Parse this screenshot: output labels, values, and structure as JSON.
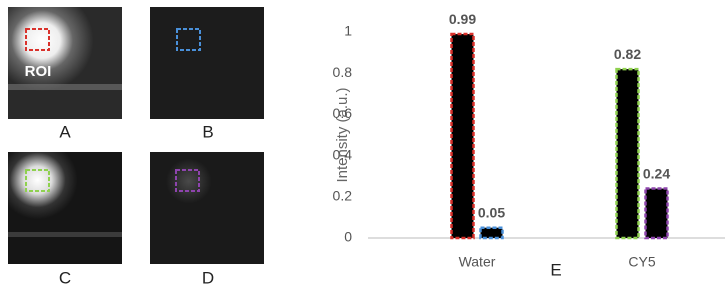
{
  "panels": [
    {
      "label": "A"
    },
    {
      "label": "B"
    },
    {
      "label": "C"
    },
    {
      "label": "D"
    }
  ],
  "roi_label": "ROI",
  "chart_data": {
    "type": "bar",
    "panel_label": "E",
    "ylabel": "Intensity (a.u.)",
    "categories": [
      "Water",
      "CY5"
    ],
    "series": [
      {
        "values": [
          0.99,
          0.82
        ],
        "colors": [
          "#d9312b",
          "#8fd14f"
        ]
      },
      {
        "values": [
          0.05,
          0.24
        ],
        "colors": [
          "#4a90d9",
          "#8e44ad"
        ]
      }
    ],
    "ylim": [
      0,
      1
    ],
    "yticks": [
      0,
      0.2,
      0.4,
      0.6,
      0.8,
      1
    ],
    "grid": false
  }
}
